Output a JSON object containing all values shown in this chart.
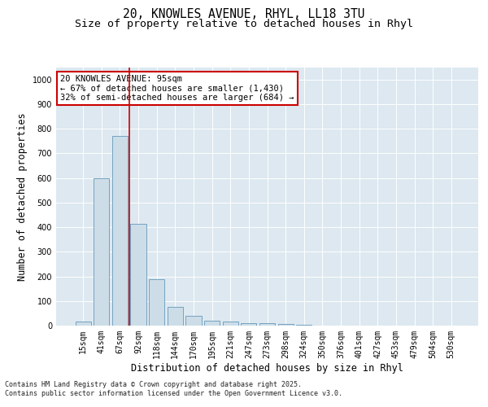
{
  "title_line1": "20, KNOWLES AVENUE, RHYL, LL18 3TU",
  "title_line2": "Size of property relative to detached houses in Rhyl",
  "xlabel": "Distribution of detached houses by size in Rhyl",
  "ylabel": "Number of detached properties",
  "categories": [
    "15sqm",
    "41sqm",
    "67sqm",
    "92sqm",
    "118sqm",
    "144sqm",
    "170sqm",
    "195sqm",
    "221sqm",
    "247sqm",
    "273sqm",
    "298sqm",
    "324sqm",
    "350sqm",
    "376sqm",
    "401sqm",
    "427sqm",
    "453sqm",
    "479sqm",
    "504sqm",
    "530sqm"
  ],
  "values": [
    15,
    600,
    770,
    415,
    190,
    75,
    40,
    20,
    15,
    10,
    10,
    5,
    2,
    1,
    0,
    0,
    0,
    0,
    0,
    0,
    0
  ],
  "bar_color": "#ccdde8",
  "bar_edge_color": "#6699bb",
  "property_line_color": "#cc0000",
  "property_line_index": 2.5,
  "annotation_text": "20 KNOWLES AVENUE: 95sqm\n← 67% of detached houses are smaller (1,430)\n32% of semi-detached houses are larger (684) →",
  "annotation_box_facecolor": "#ffffff",
  "annotation_box_edgecolor": "#cc0000",
  "ylim": [
    0,
    1050
  ],
  "yticks": [
    0,
    100,
    200,
    300,
    400,
    500,
    600,
    700,
    800,
    900,
    1000
  ],
  "background_color": "#dde8f0",
  "footer_text": "Contains HM Land Registry data © Crown copyright and database right 2025.\nContains public sector information licensed under the Open Government Licence v3.0.",
  "title_fontsize": 10.5,
  "subtitle_fontsize": 9.5,
  "tick_fontsize": 7,
  "label_fontsize": 8.5,
  "annotation_fontsize": 7.5
}
